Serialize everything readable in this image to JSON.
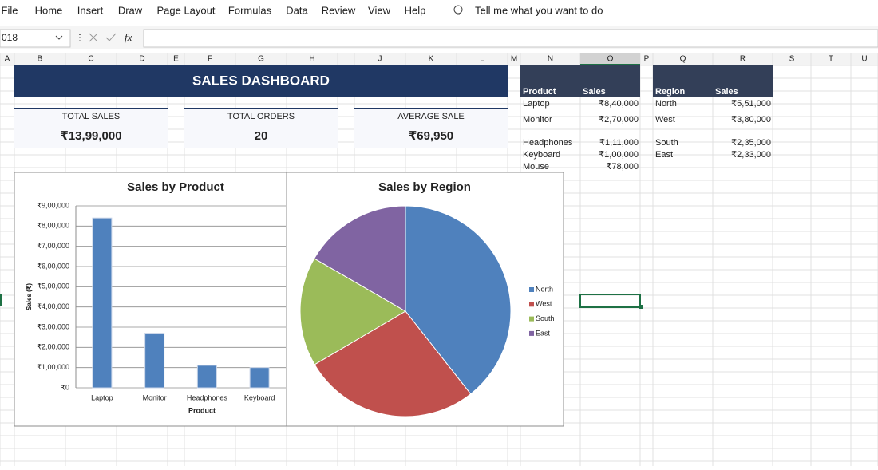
{
  "ribbon": {
    "tabs": [
      "File",
      "Home",
      "Insert",
      "Draw",
      "Page Layout",
      "Formulas",
      "Data",
      "Review",
      "View",
      "Help"
    ],
    "tell_me": "Tell me what you want to do"
  },
  "formula_bar": {
    "name_box": "018",
    "fx": "fx"
  },
  "columns": [
    "A",
    "B",
    "C",
    "D",
    "E",
    "F",
    "G",
    "H",
    "I",
    "J",
    "K",
    "L",
    "M",
    "N",
    "O",
    "P",
    "Q",
    "R",
    "S",
    "T",
    "U"
  ],
  "dashboard": {
    "title": "SALES DASHBOARD",
    "kpis": [
      {
        "label": "TOTAL SALES",
        "value": "₹13,99,000"
      },
      {
        "label": "TOTAL ORDERS",
        "value": "20"
      },
      {
        "label": "AVERAGE SALE",
        "value": "₹69,950"
      }
    ]
  },
  "product_table": {
    "headers": [
      "Product",
      "Sales"
    ],
    "rows": [
      [
        "Laptop",
        "₹8,40,000"
      ],
      [
        "Monitor",
        "₹2,70,000"
      ],
      [
        "Headphones",
        "₹1,11,000"
      ],
      [
        "Keyboard",
        "₹1,00,000"
      ],
      [
        "Mouse",
        "₹78,000"
      ]
    ]
  },
  "region_table": {
    "headers": [
      "Region",
      "Sales"
    ],
    "rows": [
      [
        "North",
        "₹5,51,000"
      ],
      [
        "West",
        "₹3,80,000"
      ],
      [
        "South",
        "₹2,35,000"
      ],
      [
        "East",
        "₹2,33,000"
      ]
    ]
  },
  "chart_data": [
    {
      "type": "bar",
      "title": "Sales by Product",
      "x_label": "Product",
      "y_label": "Sales (₹)",
      "categories": [
        "Laptop",
        "Monitor",
        "Headphones",
        "Keyboard"
      ],
      "values": [
        840000,
        270000,
        111000,
        100000
      ],
      "color": "#4f81bd",
      "ylim": [
        0,
        900000
      ],
      "grid": true,
      "yticks": [
        {
          "value": 0,
          "label": "₹0"
        },
        {
          "value": 100000,
          "label": "₹1,00,000"
        },
        {
          "value": 200000,
          "label": "₹2,00,000"
        },
        {
          "value": 300000,
          "label": "₹3,00,000"
        },
        {
          "value": 400000,
          "label": "₹4,00,000"
        },
        {
          "value": 500000,
          "label": "₹5,00,000"
        },
        {
          "value": 600000,
          "label": "₹6,00,000"
        },
        {
          "value": 700000,
          "label": "₹7,00,000"
        },
        {
          "value": 800000,
          "label": "₹8,00,000"
        },
        {
          "value": 900000,
          "label": "₹9,00,000"
        }
      ]
    },
    {
      "type": "pie",
      "title": "Sales by Region",
      "categories": [
        "North",
        "West",
        "South",
        "East"
      ],
      "values": [
        551000,
        380000,
        235000,
        233000
      ],
      "colors": [
        "#4f81bd",
        "#c0504d",
        "#9bbb59",
        "#8064a2"
      ],
      "legend": "right"
    }
  ]
}
